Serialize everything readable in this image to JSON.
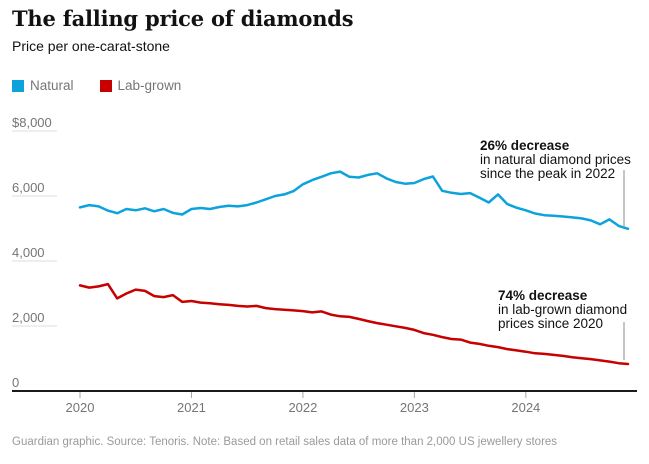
{
  "header": {
    "title": "The falling price of diamonds",
    "subtitle": "Price per one-carat-stone"
  },
  "footer": {
    "text": "Guardian graphic. Source: Tenoris. Note: Based on retail sales data of more than 2,000 US jewellery stores"
  },
  "colors": {
    "natural": "#0ca3dd",
    "lab_grown": "#c70000",
    "axis_line": "#1a1a1a",
    "tick": "#a6a6a6",
    "grid_stub": "#dcdcdc",
    "axis_label": "#757575",
    "annotation_bar": "#9c9c9c"
  },
  "chart_data": {
    "type": "line",
    "title": "The falling price of diamonds",
    "subtitle": "Price per one-carat-stone",
    "x_start": "2020-01",
    "x_interval": "month",
    "n_points": 60,
    "x_tick_labels": [
      "2020",
      "2021",
      "2022",
      "2023",
      "2024"
    ],
    "x_tick_month_indices": [
      0,
      12,
      24,
      36,
      48
    ],
    "y_ticks": [
      8000,
      6000,
      4000,
      2000,
      0
    ],
    "y_tick_labels": [
      "$8,000",
      "6,000",
      "4,000",
      "2,000",
      "0"
    ],
    "ylim": [
      0,
      8000
    ],
    "ylabel": "Price per one-carat-stone (US$)",
    "grid": "left-stub-only",
    "legend_position": "top-left",
    "series": [
      {
        "name": "Natural",
        "color": "#0ca3dd",
        "values": [
          5650,
          5720,
          5680,
          5550,
          5470,
          5600,
          5560,
          5620,
          5530,
          5600,
          5480,
          5430,
          5600,
          5630,
          5600,
          5660,
          5700,
          5680,
          5720,
          5800,
          5900,
          6000,
          6050,
          6150,
          6360,
          6490,
          6590,
          6700,
          6750,
          6590,
          6570,
          6650,
          6700,
          6540,
          6430,
          6380,
          6400,
          6520,
          6600,
          6160,
          6100,
          6060,
          6090,
          5950,
          5800,
          6050,
          5750,
          5640,
          5560,
          5460,
          5410,
          5390,
          5370,
          5340,
          5310,
          5250,
          5130,
          5280,
          5080,
          4990
        ]
      },
      {
        "name": "Lab-grown",
        "color": "#c70000",
        "values": [
          3250,
          3180,
          3220,
          3290,
          2850,
          3000,
          3120,
          3080,
          2920,
          2890,
          2950,
          2740,
          2770,
          2720,
          2700,
          2670,
          2650,
          2620,
          2600,
          2620,
          2550,
          2520,
          2500,
          2480,
          2460,
          2420,
          2450,
          2350,
          2300,
          2280,
          2220,
          2150,
          2090,
          2040,
          1990,
          1940,
          1880,
          1780,
          1730,
          1660,
          1600,
          1580,
          1490,
          1450,
          1390,
          1350,
          1290,
          1250,
          1210,
          1160,
          1140,
          1110,
          1080,
          1040,
          1010,
          980,
          940,
          905,
          855,
          830
        ]
      }
    ],
    "annotations": [
      {
        "target_series": "Natural",
        "lines": [
          "26% decrease",
          "in natural diamond prices",
          "since the peak in 2022"
        ]
      },
      {
        "target_series": "Lab-grown",
        "lines": [
          "74% decrease",
          "in lab-grown diamond",
          "prices since 2020"
        ]
      }
    ]
  }
}
